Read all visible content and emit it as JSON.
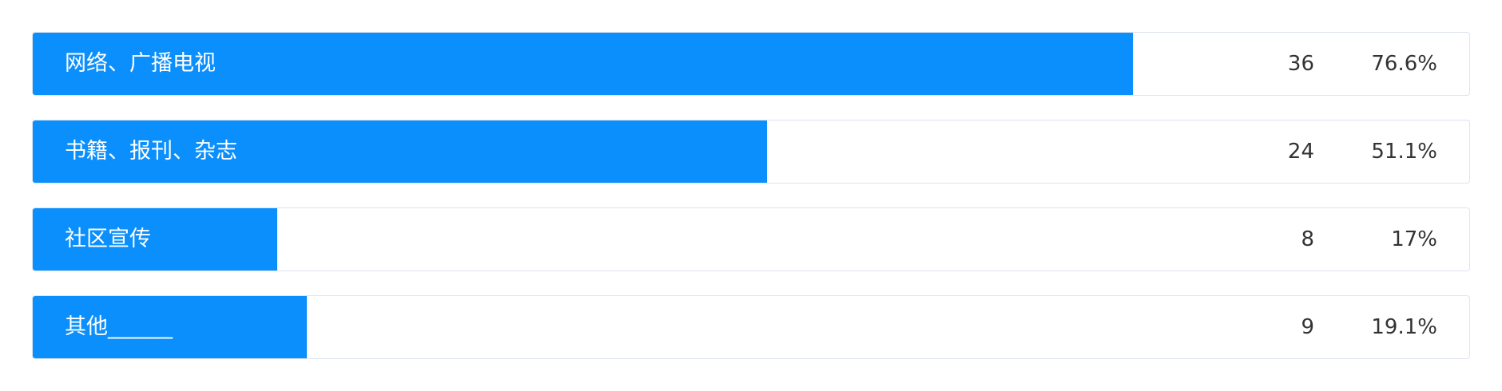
{
  "chart_data": {
    "type": "bar",
    "orientation": "horizontal",
    "categories": [
      "网络、广播电视",
      "书籍、报刊、杂志",
      "社区宣传",
      "其他______"
    ],
    "counts": [
      36,
      24,
      8,
      9
    ],
    "percent_labels": [
      "76.6%",
      "51.1%",
      "17%",
      "19.1%"
    ],
    "values": [
      76.6,
      51.1,
      17,
      19.1
    ],
    "xlim": [
      0,
      100
    ],
    "bar_color": "#0a8ffd",
    "border_color": "#dde3ee",
    "grid": false
  }
}
